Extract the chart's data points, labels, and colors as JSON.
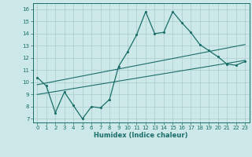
{
  "xlabel": "Humidex (Indice chaleur)",
  "bg_color": "#cce8e8",
  "line_color": "#1a6e6a",
  "grid_color": "#aacccc",
  "xlim": [
    -0.5,
    23.5
  ],
  "ylim": [
    6.7,
    16.5
  ],
  "yticks": [
    7,
    8,
    9,
    10,
    11,
    12,
    13,
    14,
    15,
    16
  ],
  "xticks": [
    0,
    1,
    2,
    3,
    4,
    5,
    6,
    7,
    8,
    9,
    10,
    11,
    12,
    13,
    14,
    15,
    16,
    17,
    18,
    19,
    20,
    21,
    22,
    23
  ],
  "line1_x": [
    0,
    1,
    2,
    3,
    4,
    5,
    6,
    7,
    8,
    9,
    10,
    11,
    12,
    13,
    14,
    15,
    16,
    17,
    18,
    19,
    20,
    21,
    22,
    23
  ],
  "line1_y": [
    10.4,
    9.7,
    7.5,
    9.2,
    8.1,
    7.0,
    8.0,
    7.9,
    8.6,
    11.3,
    12.5,
    13.9,
    15.8,
    14.0,
    14.1,
    15.8,
    14.9,
    14.1,
    13.1,
    12.6,
    12.1,
    11.5,
    11.4,
    11.7
  ],
  "line2_x": [
    0,
    23
  ],
  "line2_y": [
    9.8,
    13.1
  ],
  "line3_x": [
    0,
    23
  ],
  "line3_y": [
    9.0,
    11.8
  ]
}
